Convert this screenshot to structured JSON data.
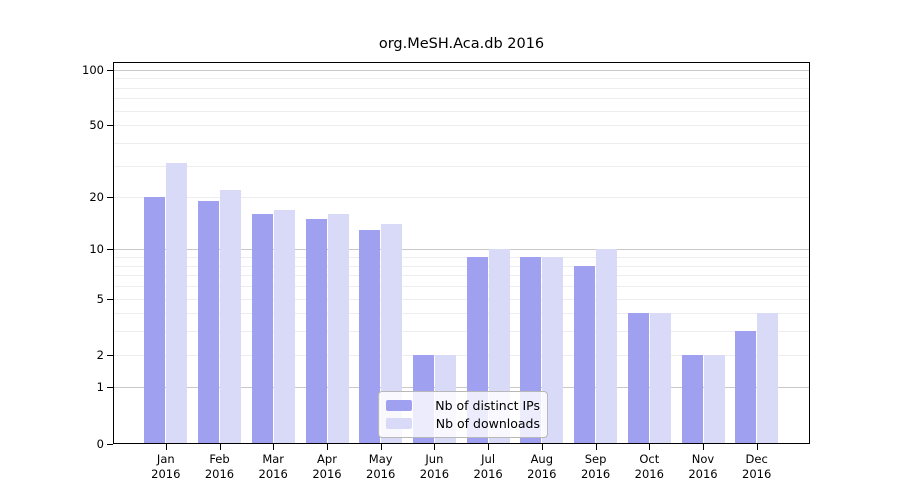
{
  "title": "org.MeSH.Aca.db 2016",
  "legend": {
    "items": [
      {
        "label": "Nb of distinct IPs",
        "color": "#a0a0f0"
      },
      {
        "label": "Nb of downloads",
        "color": "#d9d9f8"
      }
    ]
  },
  "chart_data": {
    "type": "bar",
    "title": "org.MeSH.Aca.db 2016",
    "xlabel": "",
    "ylabel": "",
    "yscale": "log1p",
    "categories": [
      "Jan",
      "Feb",
      "Mar",
      "Apr",
      "May",
      "Jun",
      "Jul",
      "Aug",
      "Sep",
      "Oct",
      "Nov",
      "Dec"
    ],
    "year": "2016",
    "series": [
      {
        "name": "Nb of distinct IPs",
        "slug": "distinct-ips",
        "color": "#a0a0f0",
        "values": [
          20,
          19,
          16,
          15,
          13,
          2,
          9,
          9,
          8,
          4,
          2,
          3
        ]
      },
      {
        "name": "Nb of downloads",
        "slug": "downloads",
        "color": "#d9d9f8",
        "values": [
          31,
          22,
          17,
          16,
          14,
          2,
          10,
          9,
          10,
          4,
          2,
          4
        ]
      }
    ],
    "yticks": [
      0,
      1,
      2,
      5,
      10,
      20,
      50,
      100
    ],
    "major_gridlines": [
      1,
      10,
      100
    ],
    "minor_gridlines": [
      2,
      3,
      4,
      5,
      6,
      7,
      8,
      9,
      20,
      30,
      40,
      50,
      60,
      70,
      80,
      90
    ],
    "ylim": [
      0,
      110
    ],
    "grid": true,
    "legend_position": "lower center"
  }
}
